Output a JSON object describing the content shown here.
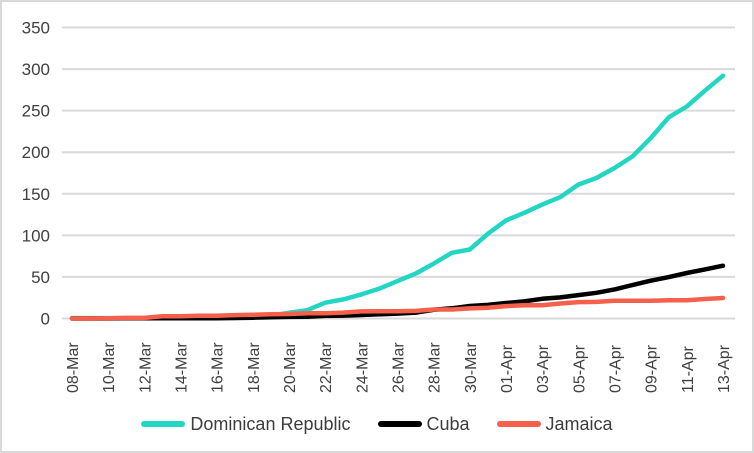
{
  "styles": {
    "background": "#ffffff",
    "border": "#d9d9d9",
    "gridline": "#d9d9d9",
    "axis_text": "#404040",
    "legend_text": "#3d3d3d"
  },
  "legend": {
    "position": "bottom-center",
    "items": [
      {
        "label": "Dominican Republic",
        "color": "#23d6c4"
      },
      {
        "label": "Cuba",
        "color": "#000000"
      },
      {
        "label": "Jamaica",
        "color": "#f4604c"
      }
    ]
  },
  "chart_data": {
    "type": "line",
    "title": "",
    "xlabel": "",
    "ylabel": "",
    "grid": "horizontal",
    "ylim": [
      0,
      350
    ],
    "y_ticks": [
      0,
      50,
      100,
      150,
      200,
      250,
      300,
      350
    ],
    "x_tick_every": 2,
    "x": [
      "08-Mar",
      "09-Mar",
      "10-Mar",
      "11-Mar",
      "12-Mar",
      "13-Mar",
      "14-Mar",
      "15-Mar",
      "16-Mar",
      "17-Mar",
      "18-Mar",
      "19-Mar",
      "20-Mar",
      "21-Mar",
      "22-Mar",
      "23-Mar",
      "24-Mar",
      "25-Mar",
      "26-Mar",
      "27-Mar",
      "28-Mar",
      "29-Mar",
      "30-Mar",
      "31-Mar",
      "01-Apr",
      "02-Apr",
      "03-Apr",
      "04-Apr",
      "05-Apr",
      "06-Apr",
      "07-Apr",
      "08-Apr",
      "09-Apr",
      "10-Apr",
      "11-Apr",
      "12-Apr",
      "13-Apr"
    ],
    "x_tick_labels": [
      "08-Mar",
      "10-Mar",
      "12-Mar",
      "14-Mar",
      "16-Mar",
      "18-Mar",
      "20-Mar",
      "22-Mar",
      "24-Mar",
      "26-Mar",
      "28-Mar",
      "30-Mar",
      "01-Apr",
      "03-Apr",
      "05-Apr",
      "07-Apr",
      "09-Apr",
      "11-Apr",
      "13-Apr"
    ],
    "series": [
      {
        "name": "Dominican Republic",
        "color": "#23d6c4",
        "values": [
          0.5,
          0.5,
          0.5,
          0.5,
          0.5,
          1,
          1,
          1,
          2,
          2,
          3,
          3,
          7,
          10,
          19,
          23,
          29,
          36,
          45,
          54,
          66,
          79,
          83,
          102,
          118,
          127,
          137,
          146,
          161,
          169,
          181,
          195,
          217,
          242,
          255,
          274,
          292
        ]
      },
      {
        "name": "Cuba",
        "color": "#000000",
        "values": [
          0,
          0,
          0,
          0.3,
          0.4,
          0.4,
          0.4,
          0.4,
          0.4,
          0.6,
          1,
          1.4,
          1.9,
          2.2,
          3.1,
          3.5,
          4.2,
          5,
          5.9,
          7.1,
          10.5,
          12.3,
          15,
          16.4,
          18.7,
          20.6,
          23.7,
          25.4,
          28.2,
          30.9,
          35,
          40.3,
          45.5,
          49.8,
          54.7,
          59.1,
          63.5
        ]
      },
      {
        "name": "Jamaica",
        "color": "#f4604c",
        "values": [
          0,
          0,
          0.3,
          0.7,
          0.7,
          2.7,
          2.7,
          3.4,
          3.4,
          4.1,
          4.4,
          5.1,
          5.4,
          6.4,
          6.4,
          7.1,
          8.5,
          8.8,
          8.8,
          9.1,
          10.8,
          10.8,
          12.2,
          12.9,
          14.9,
          15.9,
          15.9,
          18,
          19.7,
          20,
          21.3,
          21.3,
          21.3,
          22,
          22,
          23.4,
          24.7
        ]
      }
    ]
  }
}
